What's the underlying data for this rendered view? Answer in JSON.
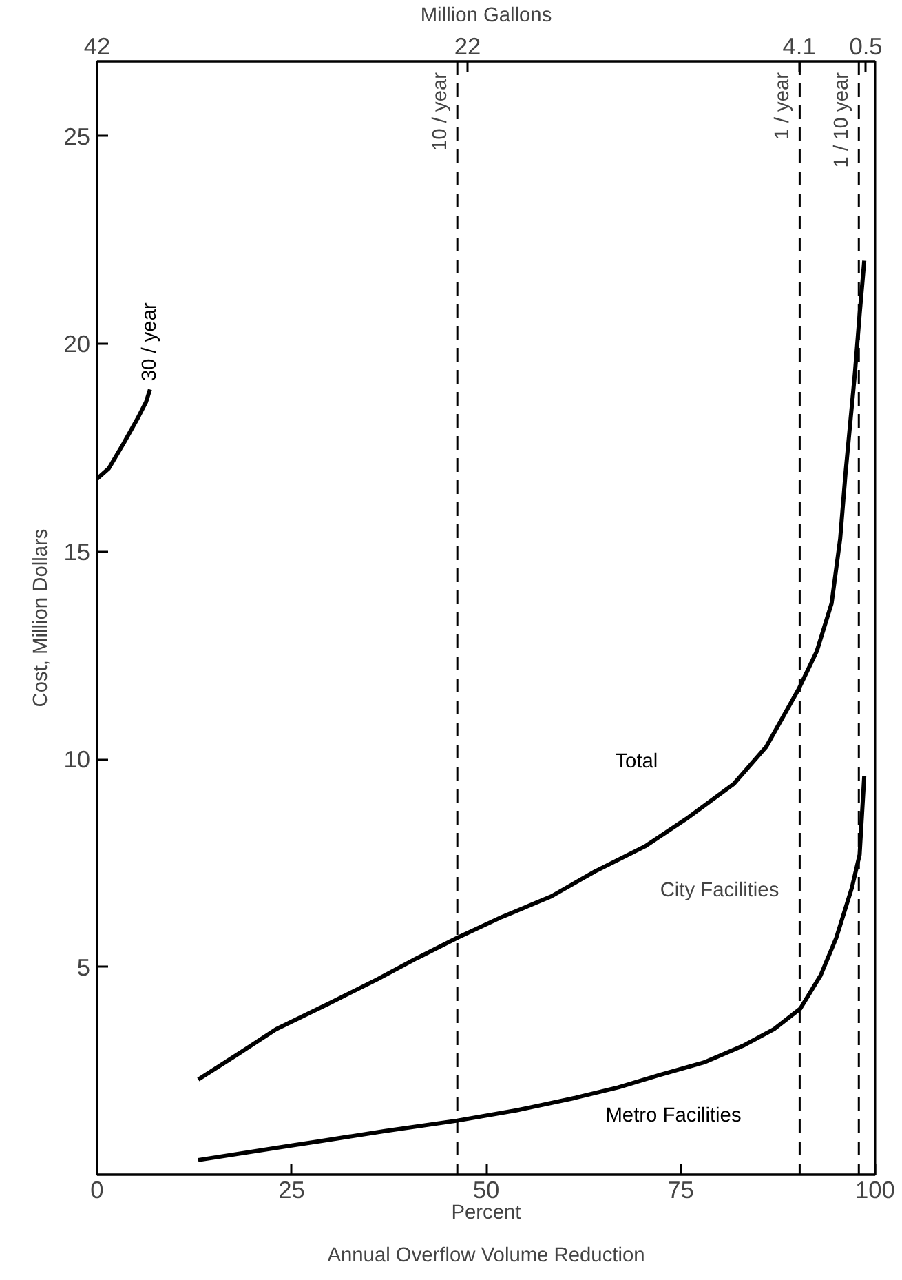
{
  "chart_data": {
    "type": "line",
    "xlabel": "Percent",
    "ylabel": "Cost, Million Dollars",
    "x2label": "Million Gallons",
    "xlim": [
      0,
      100
    ],
    "ylim": [
      0,
      26.8
    ],
    "xticks": [
      0,
      25,
      50,
      75,
      100
    ],
    "yticks": [
      5,
      10,
      15,
      20,
      25
    ],
    "x2lim": [
      42,
      0
    ],
    "x2ticks": [
      42,
      22,
      4.1,
      0.5
    ],
    "series": [
      {
        "name": "Total",
        "color": "#000000",
        "x": [
          13,
          18.1,
          23,
          29.6,
          36,
          41,
          46.3,
          52,
          58.4,
          64,
          70.4,
          76,
          81.8,
          86,
          90.2,
          92.5,
          94.4,
          95.5,
          96.2,
          97.4,
          98.0,
          98.6
        ],
        "values": [
          2.29,
          2.9,
          3.5,
          4.1,
          4.7,
          5.2,
          5.7,
          6.2,
          6.7,
          7.3,
          7.9,
          8.6,
          9.4,
          10.3,
          11.7,
          12.6,
          13.75,
          15.3,
          16.9,
          19.3,
          20.7,
          22.0
        ]
      },
      {
        "name": "Metro Facilities",
        "color": "#000000",
        "x": [
          13,
          25,
          28.5,
          37,
          46.3,
          54,
          61.5,
          67,
          72.3,
          78,
          83,
          87,
          90.4,
          93,
          95,
          97,
          98,
          98.6
        ],
        "values": [
          0.35,
          0.7,
          0.8,
          1.05,
          1.3,
          1.55,
          1.85,
          2.1,
          2.4,
          2.7,
          3.1,
          3.5,
          4.0,
          4.8,
          5.7,
          6.9,
          7.7,
          9.6
        ]
      },
      {
        "name": "30 / year",
        "color": "#000000",
        "x": [
          0,
          1.5,
          3.4,
          5.2,
          6.3,
          6.8
        ],
        "values": [
          16.75,
          17.0,
          17.6,
          18.2,
          18.6,
          18.9
        ]
      }
    ],
    "ref_lines": [
      {
        "axis": "x",
        "value": 46.3,
        "label": "10 / year",
        "line_style": "dashed"
      },
      {
        "axis": "x",
        "value": 90.3,
        "label": "1 / year",
        "line_style": "dashed"
      },
      {
        "axis": "x",
        "value": 97.9,
        "label": "1 / 10 year",
        "line_style": "dashed"
      }
    ],
    "annotations": [
      "City Facilities",
      "Annual Overflow Volume Reduction"
    ],
    "grid": false,
    "marker": "none",
    "line_style": "solid"
  }
}
